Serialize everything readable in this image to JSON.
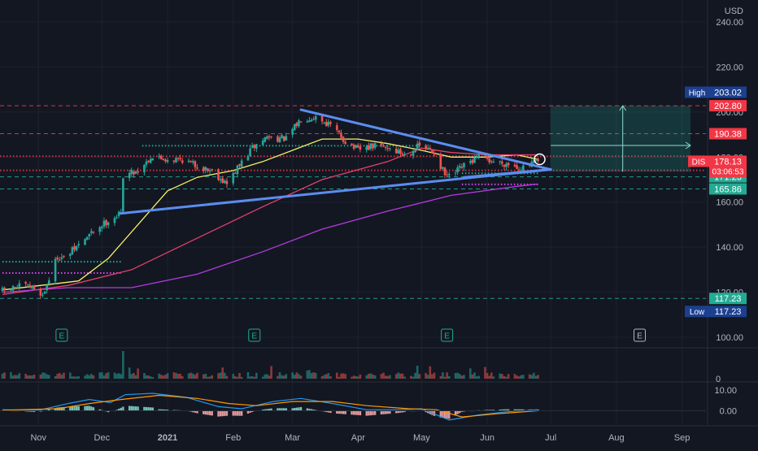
{
  "currency": "USD",
  "ticker_label": "DIS",
  "countdown": "03:06:53",
  "chart_data": {
    "type": "candlestick",
    "title": "",
    "y_axis": {
      "ticks": [
        100,
        120,
        140,
        160,
        180,
        200,
        220,
        240
      ],
      "tick_labels": [
        "100.00",
        "120.00",
        "140.00",
        "160.00",
        "180.00",
        "200.00",
        "220.00",
        "240.00"
      ],
      "visible_range": [
        96,
        244
      ]
    },
    "x_axis": {
      "labels": [
        "Nov",
        "Dec",
        "2021",
        "Feb",
        "Mar",
        "Apr",
        "May",
        "Jun",
        "Jul",
        "Aug",
        "Sep"
      ],
      "start_date": "2020-10-15",
      "end_date": "2021-09-10"
    },
    "price_anchors": [
      [
        "2020-10-15",
        120.5
      ],
      [
        "2020-10-25",
        123
      ],
      [
        "2020-11-01",
        121
      ],
      [
        "2020-11-03",
        118.5
      ],
      [
        "2020-11-06",
        126
      ],
      [
        "2020-11-10",
        136
      ],
      [
        "2020-11-13",
        135
      ],
      [
        "2020-11-20",
        141
      ],
      [
        "2020-11-27",
        147
      ],
      [
        "2020-12-04",
        152
      ],
      [
        "2020-12-10",
        155
      ],
      [
        "2020-12-11",
        172
      ],
      [
        "2020-12-18",
        174
      ],
      [
        "2020-12-24",
        180
      ],
      [
        "2021-01-01",
        179
      ],
      [
        "2021-01-08",
        179
      ],
      [
        "2021-01-15",
        176
      ],
      [
        "2021-01-22",
        174
      ],
      [
        "2021-01-29",
        168
      ],
      [
        "2021-02-03",
        175
      ],
      [
        "2021-02-10",
        184
      ],
      [
        "2021-02-17",
        189
      ],
      [
        "2021-02-26",
        188
      ],
      [
        "2021-03-05",
        197
      ],
      [
        "2021-03-12",
        198
      ],
      [
        "2021-03-19",
        194
      ],
      [
        "2021-03-26",
        187
      ],
      [
        "2021-04-01",
        183
      ],
      [
        "2021-04-09",
        185
      ],
      [
        "2021-04-16",
        184
      ],
      [
        "2021-04-23",
        181
      ],
      [
        "2021-04-30",
        185
      ],
      [
        "2021-05-07",
        182
      ],
      [
        "2021-05-12",
        172
      ],
      [
        "2021-05-14",
        171
      ],
      [
        "2021-05-21",
        176
      ],
      [
        "2021-05-28",
        180
      ],
      [
        "2021-06-04",
        178
      ],
      [
        "2021-06-11",
        177
      ],
      [
        "2021-06-18",
        175
      ],
      [
        "2021-06-25",
        178.13
      ]
    ],
    "moving_averages": [
      {
        "color": "#f5ef6a",
        "points": [
          [
            "2020-10-15",
            121
          ],
          [
            "2020-11-20",
            125
          ],
          [
            "2020-12-04",
            135
          ],
          [
            "2020-12-18",
            150
          ],
          [
            "2021-01-01",
            165
          ],
          [
            "2021-01-15",
            171
          ],
          [
            "2021-02-01",
            174
          ],
          [
            "2021-02-15",
            178
          ],
          [
            "2021-03-01",
            183
          ],
          [
            "2021-03-15",
            188
          ],
          [
            "2021-04-01",
            188
          ],
          [
            "2021-04-15",
            186
          ],
          [
            "2021-05-01",
            183
          ],
          [
            "2021-05-15",
            180
          ],
          [
            "2021-06-01",
            180
          ],
          [
            "2021-06-15",
            181
          ],
          [
            "2021-06-25",
            179
          ]
        ]
      },
      {
        "color": "#e2416c",
        "points": [
          [
            "2020-10-15",
            119
          ],
          [
            "2020-11-15",
            123
          ],
          [
            "2020-12-15",
            130
          ],
          [
            "2021-01-15",
            144
          ],
          [
            "2021-02-15",
            158
          ],
          [
            "2021-03-15",
            170
          ],
          [
            "2021-04-15",
            178
          ],
          [
            "2021-05-01",
            184
          ],
          [
            "2021-05-15",
            182
          ],
          [
            "2021-06-01",
            181
          ],
          [
            "2021-06-25",
            181
          ]
        ]
      },
      {
        "color": "#b43be0",
        "points": [
          [
            "2020-10-15",
            120
          ],
          [
            "2020-11-15",
            122
          ],
          [
            "2020-12-15",
            122
          ],
          [
            "2021-01-15",
            128
          ],
          [
            "2021-02-15",
            138
          ],
          [
            "2021-03-15",
            148
          ],
          [
            "2021-04-15",
            156
          ],
          [
            "2021-05-15",
            163
          ],
          [
            "2021-06-15",
            167
          ],
          [
            "2021-06-25",
            168
          ]
        ]
      }
    ],
    "trendlines": [
      {
        "color": "#5b8def",
        "from": [
          "2020-12-10",
          155
        ],
        "to": [
          "2021-07-01",
          174.5
        ]
      },
      {
        "color": "#5b8def",
        "from": [
          "2021-03-05",
          201
        ],
        "to": [
          "2021-07-01",
          174.5
        ]
      },
      {
        "color": "#5b8def",
        "from": [
          "2021-05-21",
          171
        ],
        "to": [
          "2021-07-01",
          174.5
        ]
      }
    ],
    "horizontal_levels": [
      {
        "value": 202.8,
        "color": "#f23645",
        "style": "dashed"
      },
      {
        "value": 190.38,
        "color": "#f23645",
        "style": "dashed"
      },
      {
        "value": 171.23,
        "color": "#22ab94",
        "style": "dashed"
      },
      {
        "value": 165.86,
        "color": "#22ab94",
        "style": "dashed"
      },
      {
        "value": 117.23,
        "color": "#22ab94",
        "style": "dashed"
      },
      {
        "value": 180.38,
        "color": "#f23645",
        "style": "dotted"
      },
      {
        "value": 174.1,
        "color": "#f23645",
        "style": "dotted"
      }
    ],
    "dotted_segments": [
      {
        "from": "2020-10-15",
        "to": "2020-12-10",
        "value": 133.5,
        "color": "#22ab94"
      },
      {
        "from": "2020-10-15",
        "to": "2020-12-10",
        "value": 128.5,
        "color": "#e040fb"
      },
      {
        "from": "2020-12-20",
        "to": "2021-05-01",
        "value": 185,
        "color": "#22ab94"
      },
      {
        "from": "2021-05-20",
        "to": "2021-06-25",
        "value": 172.8,
        "color": "#22ab94"
      },
      {
        "from": "2021-05-20",
        "to": "2021-06-25",
        "value": 167.9,
        "color": "#e040fb"
      }
    ],
    "long_position": {
      "from": "2021-07-01",
      "to": "2021-09-05",
      "entry": 173.5,
      "target": 202.8,
      "arrow_x_date": "2021-08-04"
    },
    "highlight_circle": {
      "date": "2021-06-25",
      "value": 179
    },
    "earnings_markers": {
      "label": "E",
      "dates": [
        "2020-11-12",
        "2021-02-11",
        "2021-05-13",
        "2021-08-12"
      ]
    },
    "price_labels": [
      {
        "name": "High",
        "value": 203.02,
        "text": "203.02",
        "color": "#1c3f8f",
        "text_color": "#ffffff"
      },
      {
        "name": "",
        "value": 202.8,
        "text": "202.80",
        "color": "#f23645",
        "text_color": "#ffffff"
      },
      {
        "name": "",
        "value": 190.38,
        "text": "190.38",
        "color": "#f23645",
        "text_color": "#ffffff"
      },
      {
        "name": "",
        "value": 171.23,
        "text": "171.23",
        "color": "#22ab94",
        "text_color": "#ffffff"
      },
      {
        "name": "",
        "value": 165.86,
        "text": "165.86",
        "color": "#22ab94",
        "text_color": "#ffffff"
      },
      {
        "name": "",
        "value": 117.23,
        "text": "117.23",
        "color": "#22ab94",
        "text_color": "#ffffff"
      },
      {
        "name": "Low",
        "value": 117.23,
        "text": "117.23",
        "color": "#1c3f8f",
        "text_color": "#ffffff"
      }
    ],
    "last_price": {
      "value": 178.13,
      "text": "178.13",
      "color": "#f23645"
    },
    "volume_pane": {
      "tick_label": "0",
      "spike_date": "2020-12-11"
    },
    "macd_pane": {
      "tick_labels": [
        "10.00",
        "0.00"
      ],
      "tick_values": [
        10,
        0
      ],
      "range": [
        -6.5,
        14
      ],
      "macd_color": "#2196f3",
      "signal_color": "#ff9800",
      "macd": [
        [
          "2020-10-15",
          0.5
        ],
        [
          "2020-11-01",
          0.2
        ],
        [
          "2020-11-15",
          3.5
        ],
        [
          "2020-11-25",
          5.5
        ],
        [
          "2020-12-05",
          4
        ],
        [
          "2020-12-12",
          7.8
        ],
        [
          "2020-12-25",
          8.5
        ],
        [
          "2021-01-10",
          6.5
        ],
        [
          "2021-01-25",
          2
        ],
        [
          "2021-02-05",
          1
        ],
        [
          "2021-02-20",
          4.5
        ],
        [
          "2021-03-05",
          6
        ],
        [
          "2021-03-20",
          3.5
        ],
        [
          "2021-04-05",
          0.5
        ],
        [
          "2021-04-20",
          0.5
        ],
        [
          "2021-05-01",
          1
        ],
        [
          "2021-05-14",
          -4.5
        ],
        [
          "2021-05-28",
          -2
        ],
        [
          "2021-06-10",
          -0.5
        ],
        [
          "2021-06-25",
          0.5
        ]
      ],
      "signal": [
        [
          "2020-10-15",
          0.3
        ],
        [
          "2020-11-10",
          1
        ],
        [
          "2020-11-25",
          3.5
        ],
        [
          "2020-12-10",
          5.5
        ],
        [
          "2020-12-28",
          7.5
        ],
        [
          "2021-01-15",
          6
        ],
        [
          "2021-01-30",
          3.5
        ],
        [
          "2021-02-12",
          2.5
        ],
        [
          "2021-03-01",
          4.5
        ],
        [
          "2021-03-20",
          4.5
        ],
        [
          "2021-04-05",
          2.5
        ],
        [
          "2021-04-25",
          1
        ],
        [
          "2021-05-08",
          0.5
        ],
        [
          "2021-05-20",
          -3
        ],
        [
          "2021-06-05",
          -1.5
        ],
        [
          "2021-06-25",
          0
        ]
      ]
    }
  }
}
